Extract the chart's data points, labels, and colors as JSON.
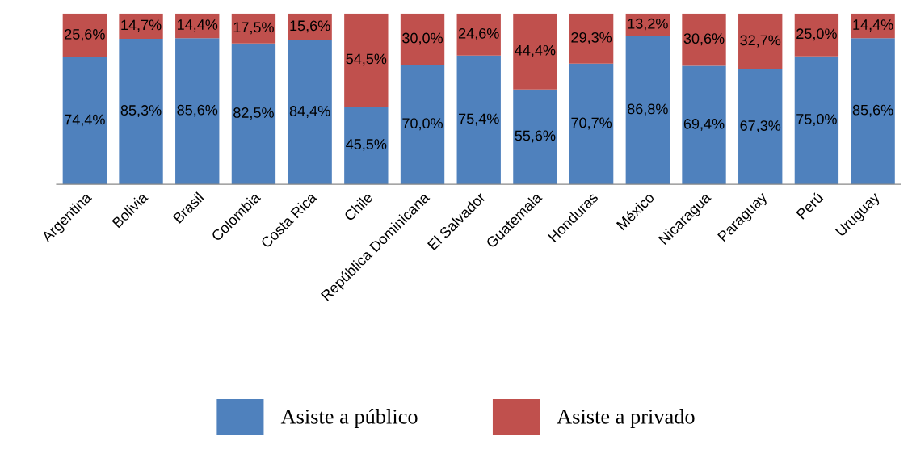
{
  "chart_data": {
    "type": "bar",
    "stacked": true,
    "legend": "bottom",
    "grid": false,
    "categories": [
      "Argentina",
      "Bolivia",
      "Brasil",
      "Colombia",
      "Costa Rica",
      "Chile",
      "República Dominicana",
      "El Salvador",
      "Guatemala",
      "Honduras",
      "México",
      "Nicaragua",
      "Paraguay",
      "Perú",
      "Uruguay"
    ],
    "series": [
      {
        "name": "Asiste a público",
        "color": "#4f81bd",
        "values": [
          74.4,
          85.3,
          85.6,
          82.5,
          84.4,
          45.5,
          70.0,
          75.4,
          55.6,
          70.7,
          86.8,
          69.4,
          67.3,
          75.0,
          85.6
        ],
        "value_labels": [
          "74,4%",
          "85,3%",
          "85,6%",
          "82,5%",
          "84,4%",
          "45,5%",
          "70,0%",
          "75,4%",
          "55,6%",
          "70,7%",
          "86,8%",
          "69,4%",
          "67,3%",
          "75,0%",
          "85,6%"
        ]
      },
      {
        "name": "Asiste a privado",
        "color": "#c0504d",
        "values": [
          25.6,
          14.7,
          14.4,
          17.5,
          15.6,
          54.5,
          30.0,
          24.6,
          44.4,
          29.3,
          13.2,
          30.6,
          32.7,
          25.0,
          14.4
        ],
        "value_labels": [
          "25,6%",
          "14,7%",
          "14,4%",
          "17,5%",
          "15,6%",
          "54,5%",
          "30,0%",
          "24,6%",
          "44,4%",
          "29,3%",
          "13,2%",
          "30,6%",
          "32,7%",
          "25,0%",
          "14,4%"
        ]
      }
    ]
  }
}
